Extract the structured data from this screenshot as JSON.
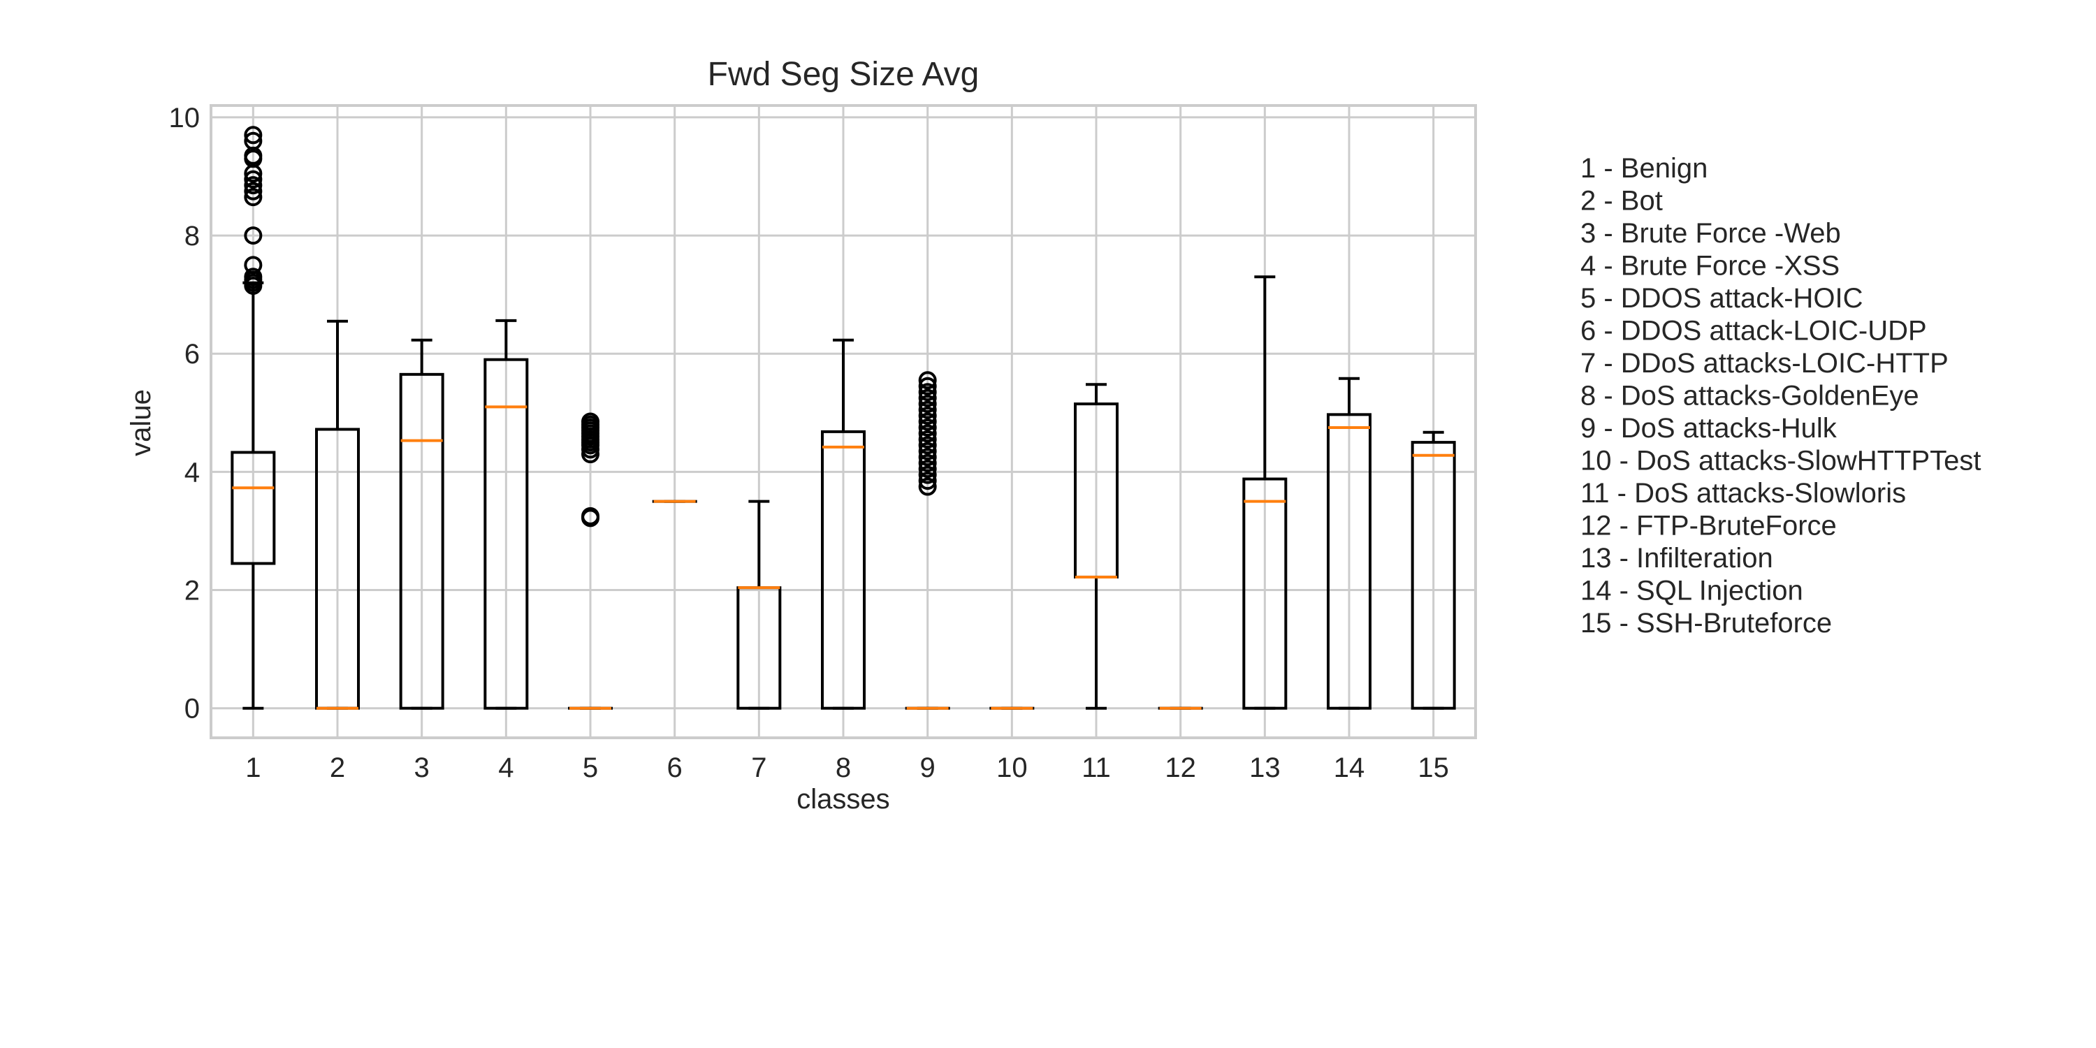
{
  "chart_data": {
    "type": "boxplot",
    "title": "Fwd Seg Size Avg",
    "xlabel": "classes",
    "ylabel": "value",
    "ylim": [
      -0.5,
      10.2
    ],
    "yticks": [
      0,
      2,
      4,
      6,
      8,
      10
    ],
    "grid": true,
    "colors": {
      "median": "#ff7f0e",
      "box": "#000000",
      "grid": "#cccccc",
      "frame": "#cccccc"
    },
    "categories": [
      "1",
      "2",
      "3",
      "4",
      "5",
      "6",
      "7",
      "8",
      "9",
      "10",
      "11",
      "12",
      "13",
      "14",
      "15"
    ],
    "boxes": [
      {
        "x": "1",
        "whislo": 0,
        "q1": 2.45,
        "med": 3.73,
        "q3": 4.33,
        "whishi": 7.2,
        "fliers": [
          7.15,
          7.2,
          7.25,
          7.3,
          7.5,
          8.0,
          8.65,
          8.75,
          8.85,
          8.95,
          9.05,
          9.3,
          9.35,
          9.6,
          9.7
        ]
      },
      {
        "x": "2",
        "whislo": 0,
        "q1": 0,
        "med": 0,
        "q3": 4.72,
        "whishi": 6.55,
        "fliers": []
      },
      {
        "x": "3",
        "whislo": 0,
        "q1": 0,
        "med": 4.53,
        "q3": 5.65,
        "whishi": 6.23,
        "fliers": []
      },
      {
        "x": "4",
        "whislo": 0,
        "q1": 0,
        "med": 5.1,
        "q3": 5.9,
        "whishi": 6.56,
        "fliers": []
      },
      {
        "x": "5",
        "whislo": 0,
        "q1": 0,
        "med": 0,
        "q3": 0,
        "whishi": 0,
        "fliers": [
          3.22,
          3.25,
          4.3,
          4.38,
          4.45,
          4.5,
          4.55,
          4.6,
          4.65,
          4.7,
          4.75,
          4.8,
          4.85
        ]
      },
      {
        "x": "6",
        "whislo": 3.5,
        "q1": 3.5,
        "med": 3.5,
        "q3": 3.5,
        "whishi": 3.5,
        "fliers": []
      },
      {
        "x": "7",
        "whislo": 0,
        "q1": 0,
        "med": 2.04,
        "q3": 2.04,
        "whishi": 3.5,
        "fliers": []
      },
      {
        "x": "8",
        "whislo": 0,
        "q1": 0,
        "med": 4.42,
        "q3": 4.68,
        "whishi": 6.23,
        "fliers": []
      },
      {
        "x": "9",
        "whislo": 0,
        "q1": 0,
        "med": 0,
        "q3": 0,
        "whishi": 0,
        "fliers": [
          3.75,
          3.85,
          3.95,
          4.05,
          4.15,
          4.25,
          4.35,
          4.45,
          4.55,
          4.65,
          4.75,
          4.85,
          4.95,
          5.05,
          5.15,
          5.25,
          5.35,
          5.45,
          5.55
        ]
      },
      {
        "x": "10",
        "whislo": 0,
        "q1": 0,
        "med": 0,
        "q3": 0,
        "whishi": 0,
        "fliers": []
      },
      {
        "x": "11",
        "whislo": 0,
        "q1": 2.22,
        "med": 2.22,
        "q3": 5.15,
        "whishi": 5.48,
        "fliers": []
      },
      {
        "x": "12",
        "whislo": 0,
        "q1": 0,
        "med": 0,
        "q3": 0,
        "whishi": 0,
        "fliers": []
      },
      {
        "x": "13",
        "whislo": 0,
        "q1": 0,
        "med": 3.5,
        "q3": 3.88,
        "whishi": 7.3,
        "fliers": []
      },
      {
        "x": "14",
        "whislo": 0,
        "q1": 0,
        "med": 4.75,
        "q3": 4.97,
        "whishi": 5.58,
        "fliers": []
      },
      {
        "x": "15",
        "whislo": 0,
        "q1": 0,
        "med": 4.28,
        "q3": 4.5,
        "whishi": 4.67,
        "fliers": []
      }
    ],
    "legend_text": [
      "1 - Benign",
      "2 - Bot",
      "3 - Brute Force -Web",
      "4 - Brute Force -XSS",
      "5 - DDOS attack-HOIC",
      "6 - DDOS attack-LOIC-UDP",
      "7 - DDoS attacks-LOIC-HTTP",
      "8 - DoS attacks-GoldenEye",
      "9 - DoS attacks-Hulk",
      "10 - DoS attacks-SlowHTTPTest",
      "11 - DoS attacks-Slowloris",
      "12 - FTP-BruteForce",
      "13 - Infilteration",
      "14 - SQL Injection",
      "15 - SSH-Bruteforce"
    ],
    "legend_position": "right"
  }
}
